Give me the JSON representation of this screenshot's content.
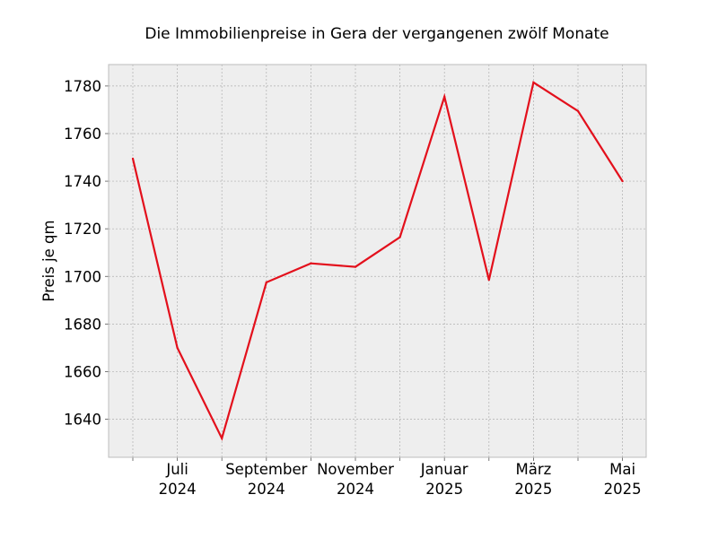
{
  "chart_data": {
    "type": "line",
    "title": "Die Immobilienpreise in Gera der vergangenen zwölf Monate",
    "xlabel": "",
    "ylabel": "Preis je qm",
    "grid": true,
    "ylim": [
      1624,
      1789
    ],
    "yticks": [
      1640,
      1660,
      1680,
      1700,
      1720,
      1740,
      1760,
      1780
    ],
    "x": [
      "2024-06",
      "2024-07",
      "2024-08",
      "2024-09",
      "2024-10",
      "2024-11",
      "2024-12",
      "2025-01",
      "2025-02",
      "2025-03",
      "2025-04",
      "2025-05"
    ],
    "xtick_labels": [
      {
        "month": "2024-07",
        "line1": "Juli",
        "line2": "2024"
      },
      {
        "month": "2024-09",
        "line1": "September",
        "line2": "2024"
      },
      {
        "month": "2024-11",
        "line1": "November",
        "line2": "2024"
      },
      {
        "month": "2025-01",
        "line1": "Januar",
        "line2": "2025"
      },
      {
        "month": "2025-03",
        "line1": "März",
        "line2": "2025"
      },
      {
        "month": "2025-05",
        "line1": "Mai",
        "line2": "2025"
      }
    ],
    "series": [
      {
        "values": [
          1749.5,
          1670,
          1632,
          1697.5,
          1705.5,
          1704,
          1716.5,
          1775.5,
          1698.5,
          1781.5,
          1769.5,
          1740
        ],
        "color": "#e3101c"
      }
    ]
  },
  "colors": {
    "plot_background": "#eeeeee",
    "grid": "#b0b0b0",
    "frame": "#bcbcbc"
  }
}
